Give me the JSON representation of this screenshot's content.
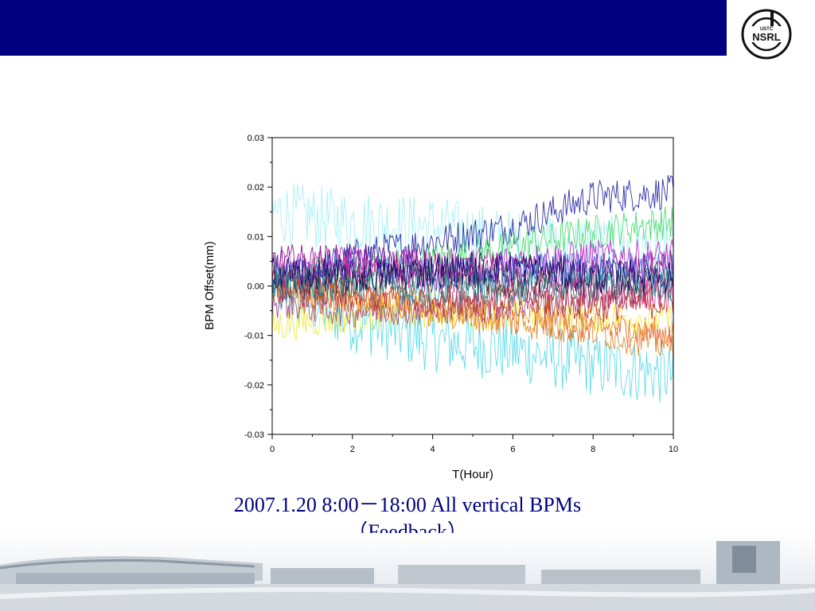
{
  "header": {
    "bar_color": "#000080",
    "logo": {
      "text_top": "USTC",
      "text_main": "NSRL",
      "icon": "institute-logo-icon"
    }
  },
  "caption": {
    "line1": "2007.1.20   8:00－18:00 All vertical BPMs",
    "line2": "（Feedback）",
    "color": "#000080"
  },
  "footer": {
    "icon": "campus-buildings-photo"
  },
  "chart_data": {
    "type": "line",
    "xlabel": "T(Hour)",
    "ylabel": "BPM Offset(mm)",
    "xlim": [
      0,
      10
    ],
    "ylim": [
      -0.03,
      0.03
    ],
    "x_ticks": [
      "0",
      "2",
      "4",
      "6",
      "8",
      "10"
    ],
    "y_ticks": [
      "0.03",
      "0.02",
      "0.01",
      "0.00",
      "-0.01",
      "-0.02",
      "-0.03"
    ],
    "grid": false,
    "legend": "none",
    "series": [
      {
        "color": "#4ad8e8",
        "x": [
          0,
          2,
          4,
          6,
          8,
          10
        ],
        "y": [
          0.0,
          -0.007,
          -0.011,
          -0.013,
          -0.016,
          -0.018
        ]
      },
      {
        "color": "#9ff0f5",
        "x": [
          0,
          2,
          4,
          6,
          8,
          10
        ],
        "y": [
          0.015,
          0.013,
          0.012,
          0.009,
          0.008,
          0.007
        ]
      },
      {
        "color": "#1a1aa0",
        "x": [
          0,
          2,
          4,
          6,
          8,
          10
        ],
        "y": [
          0.0,
          0.006,
          0.009,
          0.012,
          0.018,
          0.019
        ]
      },
      {
        "color": "#40d860",
        "x": [
          0,
          2,
          4,
          6,
          8,
          10
        ],
        "y": [
          0.002,
          0.003,
          0.005,
          0.008,
          0.011,
          0.013
        ]
      },
      {
        "color": "#e8501a",
        "x": [
          0,
          2,
          4,
          6,
          8,
          10
        ],
        "y": [
          0.0,
          -0.002,
          -0.004,
          -0.006,
          -0.008,
          -0.01
        ]
      },
      {
        "color": "#f0e830",
        "x": [
          0,
          2,
          4,
          6,
          8,
          10
        ],
        "y": [
          -0.008,
          -0.006,
          -0.005,
          -0.006,
          -0.006,
          -0.007
        ]
      },
      {
        "color": "#c020c0",
        "x": [
          0,
          2,
          4,
          6,
          8,
          10
        ],
        "y": [
          0.004,
          0.005,
          0.004,
          0.005,
          0.006,
          0.006
        ]
      },
      {
        "color": "#800080",
        "x": [
          0,
          2,
          4,
          6,
          8,
          10
        ],
        "y": [
          0.005,
          0.005,
          0.004,
          0.003,
          0.002,
          0.004
        ]
      },
      {
        "color": "#e0308a",
        "x": [
          0,
          2,
          4,
          6,
          8,
          10
        ],
        "y": [
          0.001,
          0.003,
          0.002,
          0.0,
          -0.001,
          -0.002
        ]
      },
      {
        "color": "#b01818",
        "x": [
          0,
          2,
          4,
          6,
          8,
          10
        ],
        "y": [
          0.0,
          -0.002,
          -0.003,
          -0.002,
          -0.004,
          -0.003
        ]
      },
      {
        "color": "#303030",
        "x": [
          0,
          2,
          4,
          6,
          8,
          10
        ],
        "y": [
          0.0,
          0.001,
          0.002,
          0.001,
          0.0,
          0.001
        ]
      },
      {
        "color": "#5050e0",
        "x": [
          0,
          2,
          4,
          6,
          8,
          10
        ],
        "y": [
          0.002,
          0.004,
          0.002,
          0.003,
          0.004,
          0.003
        ]
      },
      {
        "color": "#e08020",
        "x": [
          0,
          2,
          4,
          6,
          8,
          10
        ],
        "y": [
          -0.002,
          -0.003,
          -0.005,
          -0.007,
          -0.009,
          -0.012
        ]
      },
      {
        "color": "#209090",
        "x": [
          0,
          2,
          4,
          6,
          8,
          10
        ],
        "y": [
          0.001,
          0.0,
          -0.001,
          0.0,
          0.001,
          0.0
        ]
      },
      {
        "color": "#a04080",
        "x": [
          0,
          2,
          4,
          6,
          8,
          10
        ],
        "y": [
          -0.003,
          -0.005,
          -0.004,
          -0.004,
          -0.002,
          -0.001
        ]
      },
      {
        "color": "#000060",
        "x": [
          0,
          2,
          4,
          6,
          8,
          10
        ],
        "y": [
          0.003,
          0.002,
          0.003,
          0.004,
          0.002,
          0.002
        ]
      }
    ]
  }
}
